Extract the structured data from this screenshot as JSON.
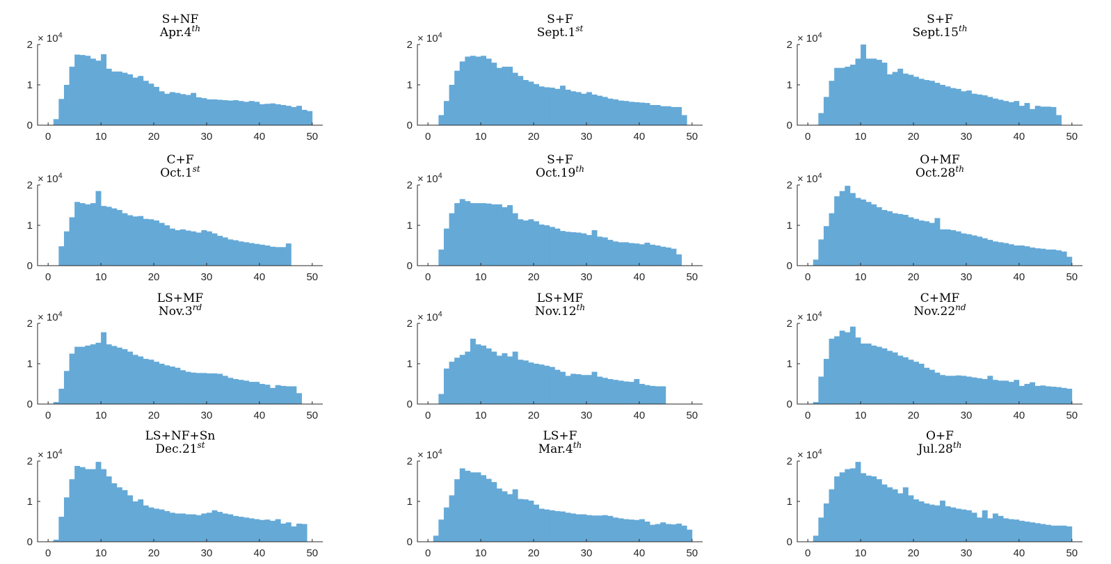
{
  "figure": {
    "bar_color": "#65a9d7",
    "axis_color": "#262626"
  },
  "chart_data": [
    {
      "type": "bar",
      "title": "S+NF",
      "subtitle": {
        "text": "Apr.4",
        "sup": "th"
      },
      "xticks": [
        "0",
        "10",
        "20",
        "30",
        "40",
        "50"
      ],
      "yticks": [
        "0",
        "1",
        "2"
      ],
      "y_multiplier": {
        "base": "× 10",
        "exp": "4"
      },
      "xlim": [
        -2,
        52
      ],
      "ylim": [
        0,
        2
      ],
      "bin_start": 0,
      "bin_width": 1,
      "values": [
        0,
        0.15,
        0.65,
        1.0,
        1.45,
        1.75,
        1.74,
        1.72,
        1.65,
        1.6,
        1.76,
        1.4,
        1.33,
        1.33,
        1.3,
        1.26,
        1.18,
        1.22,
        1.1,
        1.03,
        0.95,
        0.84,
        0.78,
        0.82,
        0.8,
        0.77,
        0.75,
        0.8,
        0.69,
        0.67,
        0.64,
        0.64,
        0.63,
        0.62,
        0.61,
        0.62,
        0.6,
        0.58,
        0.6,
        0.58,
        0.52,
        0.53,
        0.54,
        0.52,
        0.5,
        0.48,
        0.45,
        0.48,
        0.38,
        0.35
      ]
    },
    {
      "type": "bar",
      "title": "S+F",
      "subtitle": {
        "text": "Sept.1",
        "sup": "st"
      },
      "xticks": [
        "0",
        "10",
        "20",
        "30",
        "40",
        "50"
      ],
      "yticks": [
        "0",
        "1",
        "2"
      ],
      "y_multiplier": {
        "base": "× 10",
        "exp": "4"
      },
      "xlim": [
        -2,
        52
      ],
      "ylim": [
        0,
        2
      ],
      "bin_start": 0,
      "bin_width": 1,
      "values": [
        0,
        0,
        0.25,
        0.6,
        1.0,
        1.35,
        1.58,
        1.7,
        1.72,
        1.7,
        1.72,
        1.65,
        1.55,
        1.42,
        1.45,
        1.45,
        1.3,
        1.22,
        1.12,
        1.08,
        1.02,
        0.96,
        0.94,
        0.93,
        0.9,
        0.98,
        0.88,
        0.84,
        0.82,
        0.78,
        0.82,
        0.76,
        0.73,
        0.7,
        0.66,
        0.64,
        0.61,
        0.6,
        0.58,
        0.57,
        0.56,
        0.55,
        0.5,
        0.5,
        0.47,
        0.47,
        0.45,
        0.45,
        0.25
      ]
    },
    {
      "type": "bar",
      "title": "S+F",
      "subtitle": {
        "text": "Sept.15",
        "sup": "th"
      },
      "xticks": [
        "0",
        "10",
        "20",
        "30",
        "40",
        "50"
      ],
      "yticks": [
        "0",
        "1",
        "2"
      ],
      "y_multiplier": {
        "base": "× 10",
        "exp": "4"
      },
      "xlim": [
        -2,
        52
      ],
      "ylim": [
        0,
        2
      ],
      "bin_start": 0,
      "bin_width": 1,
      "values": [
        0,
        0,
        0.3,
        0.7,
        1.1,
        1.42,
        1.42,
        1.45,
        1.5,
        1.65,
        2.0,
        1.65,
        1.65,
        1.62,
        1.55,
        1.26,
        1.32,
        1.4,
        1.28,
        1.25,
        1.2,
        1.15,
        1.12,
        1.1,
        1.05,
        1.0,
        0.96,
        0.92,
        0.9,
        0.84,
        0.86,
        0.78,
        0.76,
        0.74,
        0.7,
        0.66,
        0.63,
        0.6,
        0.57,
        0.6,
        0.48,
        0.55,
        0.4,
        0.48,
        0.46,
        0.46,
        0.45,
        0.25
      ]
    },
    {
      "type": "bar",
      "title": "C+F",
      "subtitle": {
        "text": "Oct.1",
        "sup": "st"
      },
      "xticks": [
        "0",
        "10",
        "20",
        "30",
        "40",
        "50"
      ],
      "yticks": [
        "0",
        "1",
        "2"
      ],
      "y_multiplier": {
        "base": "× 10",
        "exp": "4"
      },
      "xlim": [
        -2,
        52
      ],
      "ylim": [
        0,
        2
      ],
      "bin_start": 0,
      "bin_width": 1,
      "values": [
        0,
        0,
        0.48,
        0.85,
        1.2,
        1.58,
        1.55,
        1.52,
        1.55,
        1.85,
        1.48,
        1.46,
        1.42,
        1.38,
        1.3,
        1.25,
        1.22,
        1.23,
        1.16,
        1.15,
        1.12,
        1.06,
        1.0,
        0.92,
        0.88,
        0.9,
        0.87,
        0.85,
        0.82,
        0.88,
        0.85,
        0.8,
        0.74,
        0.7,
        0.65,
        0.63,
        0.6,
        0.58,
        0.56,
        0.54,
        0.52,
        0.5,
        0.47,
        0.46,
        0.46,
        0.55
      ]
    },
    {
      "type": "bar",
      "title": "S+F",
      "subtitle": {
        "text": "Oct.19",
        "sup": "th"
      },
      "xticks": [
        "0",
        "10",
        "20",
        "30",
        "40",
        "50"
      ],
      "yticks": [
        "0",
        "1",
        "2"
      ],
      "y_multiplier": {
        "base": "× 10",
        "exp": "4"
      },
      "xlim": [
        -2,
        52
      ],
      "ylim": [
        0,
        2
      ],
      "bin_start": 0,
      "bin_width": 1,
      "values": [
        0,
        0,
        0.4,
        0.92,
        1.3,
        1.55,
        1.65,
        1.6,
        1.55,
        1.55,
        1.55,
        1.54,
        1.52,
        1.52,
        1.45,
        1.5,
        1.3,
        1.15,
        1.12,
        1.15,
        1.1,
        1.02,
        1.0,
        0.96,
        0.92,
        0.86,
        0.84,
        0.83,
        0.82,
        0.8,
        0.76,
        0.88,
        0.72,
        0.7,
        0.64,
        0.6,
        0.58,
        0.58,
        0.56,
        0.55,
        0.53,
        0.57,
        0.52,
        0.5,
        0.47,
        0.45,
        0.42,
        0.28
      ]
    },
    {
      "type": "bar",
      "title": "O+MF",
      "subtitle": {
        "text": "Oct.28",
        "sup": "th"
      },
      "xticks": [
        "0",
        "10",
        "20",
        "30",
        "40",
        "50"
      ],
      "yticks": [
        "0",
        "1",
        "2"
      ],
      "y_multiplier": {
        "base": "× 10",
        "exp": "4"
      },
      "xlim": [
        -2,
        52
      ],
      "ylim": [
        0,
        2
      ],
      "bin_start": 0,
      "bin_width": 1,
      "values": [
        0,
        0.15,
        0.65,
        0.98,
        1.3,
        1.72,
        1.85,
        1.98,
        1.8,
        1.68,
        1.64,
        1.58,
        1.52,
        1.45,
        1.38,
        1.35,
        1.3,
        1.28,
        1.26,
        1.2,
        1.16,
        1.12,
        1.1,
        1.06,
        1.18,
        0.9,
        0.9,
        0.88,
        0.85,
        0.8,
        0.78,
        0.75,
        0.72,
        0.68,
        0.64,
        0.6,
        0.58,
        0.56,
        0.53,
        0.5,
        0.5,
        0.48,
        0.45,
        0.43,
        0.42,
        0.4,
        0.4,
        0.38,
        0.35,
        0.22
      ]
    },
    {
      "type": "bar",
      "title": "LS+MF",
      "subtitle": {
        "text": "Nov.3",
        "sup": "rd"
      },
      "xticks": [
        "0",
        "10",
        "20",
        "30",
        "40",
        "50"
      ],
      "yticks": [
        "0",
        "1",
        "2"
      ],
      "y_multiplier": {
        "base": "× 10",
        "exp": "4"
      },
      "xlim": [
        -2,
        52
      ],
      "ylim": [
        0,
        2
      ],
      "bin_start": 0,
      "bin_width": 1,
      "values": [
        0,
        0.05,
        0.38,
        0.82,
        1.25,
        1.42,
        1.42,
        1.45,
        1.48,
        1.52,
        1.78,
        1.48,
        1.44,
        1.4,
        1.36,
        1.3,
        1.22,
        1.18,
        1.12,
        1.1,
        1.05,
        1.0,
        0.96,
        0.93,
        0.9,
        0.84,
        0.8,
        0.78,
        0.77,
        0.77,
        0.76,
        0.76,
        0.75,
        0.7,
        0.65,
        0.62,
        0.6,
        0.58,
        0.55,
        0.55,
        0.5,
        0.48,
        0.4,
        0.47,
        0.45,
        0.44,
        0.44,
        0.27
      ]
    },
    {
      "type": "bar",
      "title": "LS+MF",
      "subtitle": {
        "text": "Nov.12",
        "sup": "th"
      },
      "xticks": [
        "0",
        "10",
        "20",
        "30",
        "40",
        "50"
      ],
      "yticks": [
        "0",
        "1",
        "2"
      ],
      "y_multiplier": {
        "base": "× 10",
        "exp": "4"
      },
      "xlim": [
        -2,
        52
      ],
      "ylim": [
        0,
        2
      ],
      "bin_start": 0,
      "bin_width": 1,
      "values": [
        0,
        0,
        0.25,
        0.88,
        1.05,
        1.15,
        1.22,
        1.3,
        1.62,
        1.48,
        1.45,
        1.38,
        1.3,
        1.2,
        1.26,
        1.18,
        1.3,
        1.1,
        1.08,
        1.03,
        1.0,
        0.98,
        0.95,
        0.92,
        0.85,
        0.8,
        0.7,
        0.75,
        0.74,
        0.72,
        0.72,
        0.8,
        0.68,
        0.65,
        0.62,
        0.6,
        0.58,
        0.56,
        0.55,
        0.62,
        0.5,
        0.47,
        0.45,
        0.44,
        0.44
      ]
    },
    {
      "type": "bar",
      "title": "C+MF",
      "subtitle": {
        "text": "Nov.22",
        "sup": "nd"
      },
      "xticks": [
        "0",
        "10",
        "20",
        "30",
        "40",
        "50"
      ],
      "yticks": [
        "0",
        "1",
        "2"
      ],
      "y_multiplier": {
        "base": "× 10",
        "exp": "4"
      },
      "xlim": [
        -2,
        52
      ],
      "ylim": [
        0,
        2
      ],
      "bin_start": 0,
      "bin_width": 1,
      "values": [
        0,
        0.05,
        0.68,
        1.12,
        1.62,
        1.68,
        1.82,
        1.78,
        1.92,
        1.65,
        1.5,
        1.5,
        1.45,
        1.42,
        1.38,
        1.32,
        1.28,
        1.2,
        1.16,
        1.1,
        1.05,
        1.0,
        0.9,
        0.85,
        0.78,
        0.72,
        0.7,
        0.7,
        0.71,
        0.7,
        0.68,
        0.66,
        0.64,
        0.62,
        0.7,
        0.6,
        0.58,
        0.58,
        0.55,
        0.6,
        0.45,
        0.5,
        0.54,
        0.45,
        0.46,
        0.44,
        0.43,
        0.42,
        0.4,
        0.38
      ]
    },
    {
      "type": "bar",
      "title": "LS+NF+Sn",
      "subtitle": {
        "text": "Dec.21",
        "sup": "st"
      },
      "xticks": [
        "0",
        "10",
        "20",
        "30",
        "40",
        "50"
      ],
      "yticks": [
        "0",
        "1",
        "2"
      ],
      "y_multiplier": {
        "base": "× 10",
        "exp": "4"
      },
      "xlim": [
        -2,
        52
      ],
      "ylim": [
        0,
        2
      ],
      "bin_start": 0,
      "bin_width": 1,
      "values": [
        0,
        0.05,
        0.62,
        1.1,
        1.55,
        1.88,
        1.85,
        1.8,
        1.8,
        1.98,
        1.8,
        1.62,
        1.45,
        1.35,
        1.28,
        1.15,
        1.0,
        1.05,
        0.9,
        0.85,
        0.82,
        0.8,
        0.76,
        0.72,
        0.7,
        0.7,
        0.68,
        0.68,
        0.66,
        0.7,
        0.72,
        0.78,
        0.74,
        0.7,
        0.68,
        0.64,
        0.62,
        0.6,
        0.58,
        0.56,
        0.54,
        0.55,
        0.52,
        0.56,
        0.45,
        0.48,
        0.38,
        0.45,
        0.44
      ]
    },
    {
      "type": "bar",
      "title": "LS+F",
      "subtitle": {
        "text": "Mar.4",
        "sup": "th"
      },
      "xticks": [
        "0",
        "10",
        "20",
        "30",
        "40",
        "50"
      ],
      "yticks": [
        "0",
        "1",
        "2"
      ],
      "y_multiplier": {
        "base": "× 10",
        "exp": "4"
      },
      "xlim": [
        -2,
        52
      ],
      "ylim": [
        0,
        2
      ],
      "bin_start": 0,
      "bin_width": 1,
      "values": [
        0,
        0.15,
        0.55,
        0.85,
        1.15,
        1.55,
        1.82,
        1.76,
        1.72,
        1.72,
        1.65,
        1.56,
        1.48,
        1.32,
        1.25,
        1.18,
        1.3,
        1.06,
        1.05,
        1.02,
        0.92,
        0.82,
        0.8,
        0.78,
        0.76,
        0.75,
        0.72,
        0.7,
        0.68,
        0.68,
        0.66,
        0.65,
        0.65,
        0.66,
        0.64,
        0.6,
        0.58,
        0.56,
        0.55,
        0.54,
        0.56,
        0.5,
        0.42,
        0.44,
        0.48,
        0.44,
        0.43,
        0.45,
        0.4,
        0.3
      ]
    },
    {
      "type": "bar",
      "title": "O+F",
      "subtitle": {
        "text": "Jul.28",
        "sup": "th"
      },
      "xticks": [
        "0",
        "10",
        "20",
        "30",
        "40",
        "50"
      ],
      "yticks": [
        "0",
        "1",
        "2"
      ],
      "y_multiplier": {
        "base": "× 10",
        "exp": "4"
      },
      "xlim": [
        -2,
        52
      ],
      "ylim": [
        0,
        2
      ],
      "bin_start": 0,
      "bin_width": 1,
      "values": [
        0,
        0.15,
        0.6,
        0.95,
        1.3,
        1.62,
        1.72,
        1.8,
        1.82,
        1.98,
        1.7,
        1.64,
        1.62,
        1.55,
        1.42,
        1.35,
        1.3,
        1.2,
        1.35,
        1.15,
        1.05,
        1.0,
        0.95,
        0.92,
        0.9,
        1.02,
        0.88,
        0.85,
        0.82,
        0.8,
        0.78,
        0.72,
        0.6,
        0.78,
        0.58,
        0.7,
        0.64,
        0.58,
        0.56,
        0.55,
        0.52,
        0.5,
        0.48,
        0.46,
        0.44,
        0.42,
        0.4,
        0.4,
        0.4,
        0.38
      ]
    }
  ]
}
